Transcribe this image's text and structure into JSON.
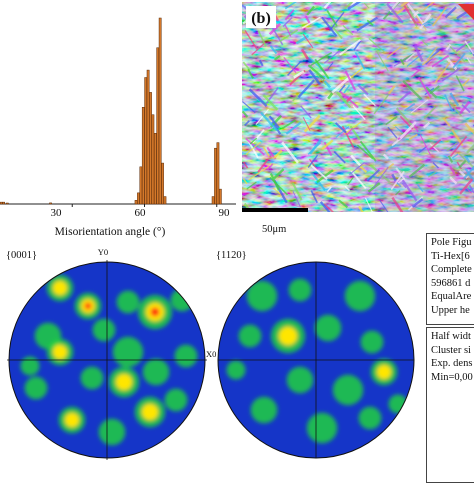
{
  "chart_data": {
    "type": "bar",
    "xlabel": "Misorientation angle (°)",
    "ylabel": "",
    "xlim": [
      0,
      98
    ],
    "ylim": [
      0,
      1
    ],
    "x_ticks": [
      "30",
      "60",
      "90"
    ],
    "bar_color": "#d4782a",
    "bars": [
      {
        "x": 0.5,
        "y": 0.01
      },
      {
        "x": 1.5,
        "y": 0.01
      },
      {
        "x": 3,
        "y": 0.005
      },
      {
        "x": 21,
        "y": 0.006
      },
      {
        "x": 56.5,
        "y": 0.02
      },
      {
        "x": 57.5,
        "y": 0.06
      },
      {
        "x": 58.5,
        "y": 0.2
      },
      {
        "x": 59.5,
        "y": 0.52
      },
      {
        "x": 60.5,
        "y": 0.68
      },
      {
        "x": 61.5,
        "y": 0.72
      },
      {
        "x": 62.5,
        "y": 0.6
      },
      {
        "x": 63.5,
        "y": 0.48
      },
      {
        "x": 64.5,
        "y": 0.38
      },
      {
        "x": 65.5,
        "y": 0.84
      },
      {
        "x": 66.5,
        "y": 1.0
      },
      {
        "x": 67.5,
        "y": 0.22
      },
      {
        "x": 68.5,
        "y": 0.04
      },
      {
        "x": 88.5,
        "y": 0.04
      },
      {
        "x": 89.5,
        "y": 0.3
      },
      {
        "x": 90.5,
        "y": 0.33
      },
      {
        "x": 91.5,
        "y": 0.08
      }
    ]
  },
  "ebsd_map": {
    "panel_label": "(b)",
    "scale_bar_label": "50μm"
  },
  "pole_figures": [
    {
      "label": "{0001}",
      "axis_top": "Y0",
      "axis_right": "X0"
    },
    {
      "label": "{1120}",
      "axis_top": "",
      "axis_right": ""
    }
  ],
  "info_box_1": [
    "Pole Figu",
    "Ti-Hex[6",
    "Complete",
    "596861 d",
    "EqualAre",
    "Upper he"
  ],
  "info_box_2": [
    "Half widt",
    "Cluster si",
    "Exp. dens",
    "Min=0,00"
  ],
  "colors": {
    "pole_background": "#1535c8",
    "pole_high": "#ff1010",
    "pole_mid": "#ffe600",
    "pole_low": "#20d040",
    "ebsd_base": "#3fc0b0"
  }
}
